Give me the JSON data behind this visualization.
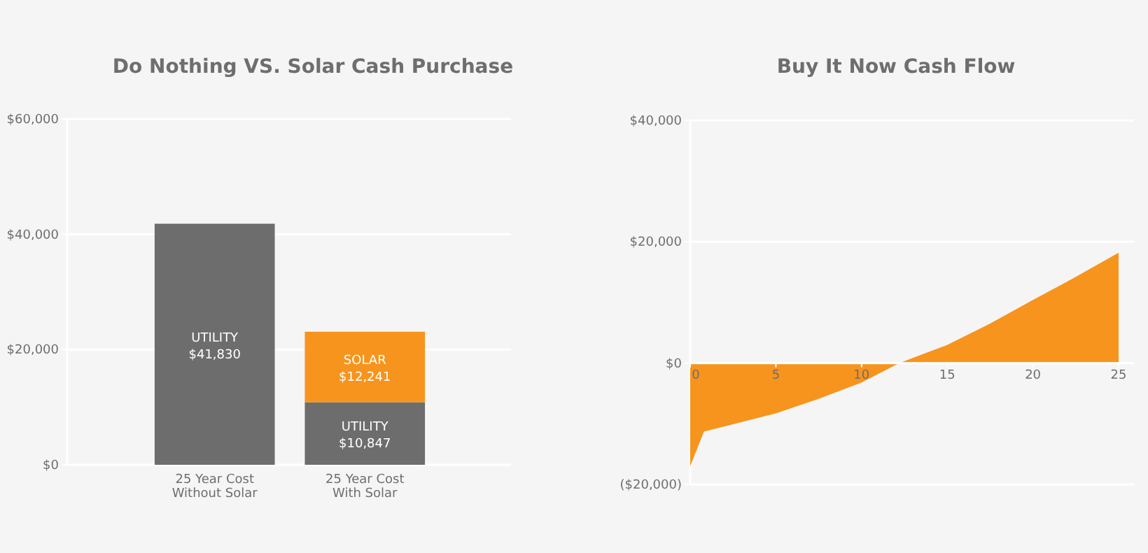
{
  "chart_data": [
    {
      "type": "bar",
      "title": "Do Nothing VS. Solar Cash Purchase",
      "stacked": true,
      "categories": [
        "25 Year Cost\nWithout Solar",
        "25 Year Cost\nWith Solar"
      ],
      "series": [
        {
          "name": "UTILITY",
          "color": "#6d6d6d",
          "values": [
            41830,
            10847
          ],
          "value_labels": [
            "$41,830",
            "$10,847"
          ]
        },
        {
          "name": "SOLAR",
          "color": "#f7941d",
          "values": [
            null,
            12241
          ],
          "value_labels": [
            null,
            "$12,241"
          ]
        }
      ],
      "ylim": [
        0,
        60000
      ],
      "yticks": [
        {
          "value": 0,
          "label": "$0"
        },
        {
          "value": 20000,
          "label": "$20,000"
        },
        {
          "value": 40000,
          "label": "$40,000"
        },
        {
          "value": 60000,
          "label": "$60,000"
        }
      ],
      "grid": "y"
    },
    {
      "type": "area",
      "title": "Buy It Now Cash Flow",
      "x": [
        0,
        0.8,
        5,
        7.5,
        10,
        12.2,
        15,
        17.5,
        20,
        22.5,
        25
      ],
      "series": [
        {
          "color": "#f7941d",
          "values": [
            -17000,
            -11300,
            -8300,
            -5900,
            -3200,
            0,
            3000,
            6500,
            10400,
            14200,
            18200
          ]
        }
      ],
      "xlim": [
        0,
        25
      ],
      "xticks": [
        0,
        5,
        10,
        15,
        20,
        25
      ],
      "ylim": [
        -20000,
        40000
      ],
      "yticks": [
        {
          "value": -20000,
          "label": "($20,000)"
        },
        {
          "value": 0,
          "label": "$0"
        },
        {
          "value": 20000,
          "label": "$20,000"
        },
        {
          "value": 40000,
          "label": "$40,000"
        }
      ],
      "grid": "y"
    }
  ]
}
